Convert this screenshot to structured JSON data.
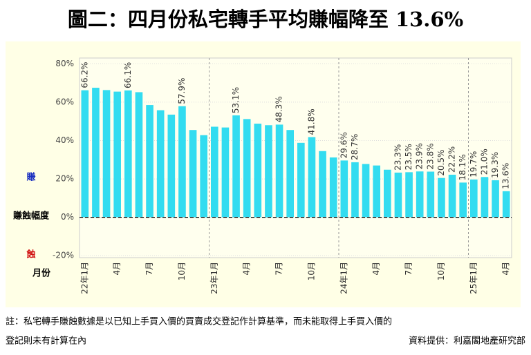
{
  "title": "圖二：四月份私宅轉手平均賺幅降至 13.6%",
  "chart_data": {
    "type": "bar",
    "categories": [
      "22年1月",
      null,
      null,
      "4月",
      null,
      null,
      "7月",
      null,
      null,
      "10月",
      null,
      null,
      "23年1月",
      null,
      null,
      "4月",
      null,
      null,
      "7月",
      null,
      null,
      "10月",
      null,
      null,
      "24年1月",
      null,
      null,
      "4月",
      null,
      null,
      "7月",
      null,
      null,
      "10月",
      null,
      null,
      "25年1月",
      null,
      null,
      "4月"
    ],
    "values": [
      66.2,
      67.5,
      66.3,
      65.5,
      66.1,
      65.2,
      58.5,
      55.8,
      53.5,
      57.9,
      45.5,
      42.8,
      47.2,
      46.8,
      53.1,
      51.2,
      48.8,
      48.0,
      48.3,
      45.5,
      38.8,
      41.8,
      34.5,
      31.2,
      29.6,
      28.7,
      27.8,
      27.0,
      24.8,
      23.3,
      23.5,
      23.9,
      23.8,
      20.5,
      22.2,
      18.1,
      19.7,
      21.0,
      19.3,
      13.6
    ],
    "value_labels": [
      "66.2%",
      null,
      null,
      null,
      "66.1%",
      null,
      null,
      null,
      null,
      "57.9%",
      null,
      null,
      null,
      null,
      "53.1%",
      null,
      null,
      null,
      "48.3%",
      null,
      null,
      "41.8%",
      null,
      null,
      "29.6%",
      "28.7%",
      null,
      null,
      null,
      "23.3%",
      "23.5%",
      "23.9%",
      "23.8%",
      "20.5%",
      "22.2%",
      "18.1%",
      "19.7%",
      "21.0%",
      "19.3%",
      "13.6%"
    ],
    "color": "#33dcf0",
    "ylim": [
      -21,
      83
    ],
    "yticks": [
      {
        "value": -20,
        "label": "-20%"
      },
      {
        "value": 0,
        "label": "0%"
      },
      {
        "value": 20,
        "label": "20%"
      },
      {
        "value": 40,
        "label": "40%"
      },
      {
        "value": 60,
        "label": "60%"
      },
      {
        "value": 80,
        "label": "80%"
      }
    ],
    "grid": true,
    "gain_label": "賺",
    "loss_label": "蝕",
    "zero_label": "賺蝕幅度",
    "x_label": "月份"
  },
  "note": "註：私宅轉手賺蝕數據是以已知上手買入價的買賣成交登記作計算基準，而未能取得上手買入價的",
  "note_line2": "登記則未有計算在內",
  "source": "資料提供：利嘉閣地產研究部"
}
